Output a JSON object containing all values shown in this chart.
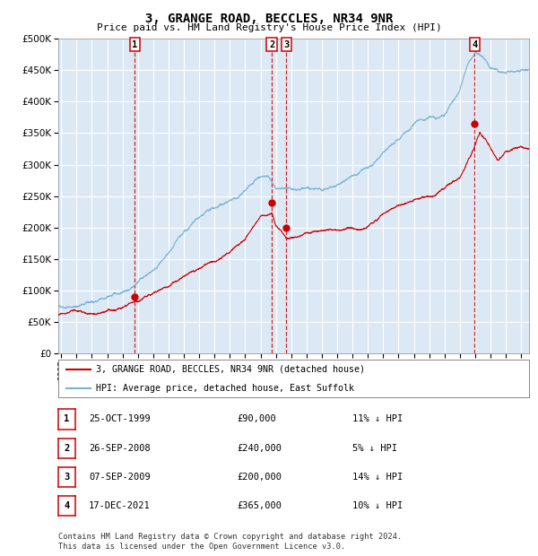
{
  "title": "3, GRANGE ROAD, BECCLES, NR34 9NR",
  "subtitle": "Price paid vs. HM Land Registry's House Price Index (HPI)",
  "bg_color": "#dce9f5",
  "grid_color": "#ffffff",
  "hpi_color": "#7ab3d4",
  "price_color": "#cc0000",
  "ylim": [
    0,
    500000
  ],
  "yticks": [
    0,
    50000,
    100000,
    150000,
    200000,
    250000,
    300000,
    350000,
    400000,
    450000,
    500000
  ],
  "xlim_start": 1994.8,
  "xlim_end": 2025.5,
  "transactions": [
    {
      "num": 1,
      "date_str": "25-OCT-1999",
      "year": 1999.81,
      "price": 90000,
      "pct": "11% ↓ HPI"
    },
    {
      "num": 2,
      "date_str": "26-SEP-2008",
      "year": 2008.74,
      "price": 240000,
      "pct": "5% ↓ HPI"
    },
    {
      "num": 3,
      "date_str": "07-SEP-2009",
      "year": 2009.69,
      "price": 200000,
      "pct": "14% ↓ HPI"
    },
    {
      "num": 4,
      "date_str": "17-DEC-2021",
      "year": 2021.96,
      "price": 365000,
      "pct": "10% ↓ HPI"
    }
  ],
  "legend_entries": [
    "3, GRANGE ROAD, BECCLES, NR34 9NR (detached house)",
    "HPI: Average price, detached house, East Suffolk"
  ],
  "footer_lines": [
    "Contains HM Land Registry data © Crown copyright and database right 2024.",
    "This data is licensed under the Open Government Licence v3.0."
  ],
  "table_rows": [
    [
      "1",
      "25-OCT-1999",
      "£90,000",
      "11% ↓ HPI"
    ],
    [
      "2",
      "26-SEP-2008",
      "£240,000",
      "5% ↓ HPI"
    ],
    [
      "3",
      "07-SEP-2009",
      "£200,000",
      "14% ↓ HPI"
    ],
    [
      "4",
      "17-DEC-2021",
      "£365,000",
      "10% ↓ HPI"
    ]
  ]
}
